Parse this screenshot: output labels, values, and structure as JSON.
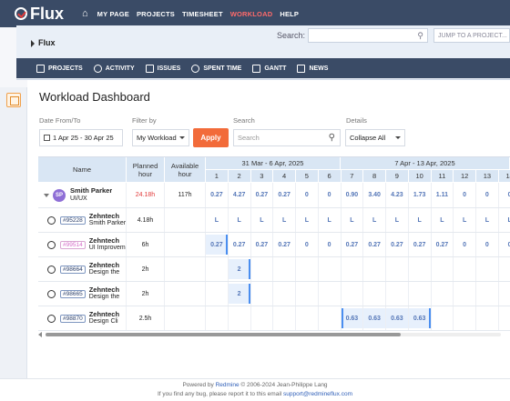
{
  "app": {
    "name": "Flux"
  },
  "topnav": [
    "MY PAGE",
    "PROJECTS",
    "TIMESHEET",
    "WORKLOAD",
    "HELP"
  ],
  "header": {
    "project": "Flux",
    "search_label": "Search:",
    "search_value": "",
    "jump": "JUMP TO A PROJECT..."
  },
  "menu": [
    "PROJECTS",
    "ACTIVITY",
    "ISSUES",
    "SPENT TIME",
    "GANTT",
    "NEWS"
  ],
  "page": {
    "title": "Workload Dashboard"
  },
  "filters": {
    "date_label": "Date From/To",
    "date_value": "1 Apr 25 - 30 Apr 25",
    "filter_label": "Filter by",
    "filter_value": "My Workload",
    "apply": "Apply",
    "search_label": "Search",
    "search_placeholder": "Search",
    "details_label": "Details",
    "details_value": "Collapse All"
  },
  "grid": {
    "col_name": "Name",
    "col_planned": "Planned hour",
    "col_available": "Available hour",
    "week1": "31 Mar - 6 Apr, 2025",
    "week2": "7 Apr - 13 Apr, 2025",
    "days": [
      "1",
      "2",
      "3",
      "4",
      "5",
      "6",
      "7",
      "8",
      "9",
      "10",
      "11",
      "12",
      "13",
      "14"
    ],
    "user": {
      "initials": "SP",
      "name": "Smith Parker",
      "role": "UI/UX",
      "planned": "24.18h",
      "available": "117h",
      "days": [
        "0.27",
        "4.27",
        "0.27",
        "0.27",
        "0",
        "0",
        "0.90",
        "3.40",
        "4.23",
        "1.73",
        "1.11",
        "0",
        "0",
        "0"
      ]
    },
    "tasks": [
      {
        "id": "#95228",
        "org": "Zehntech",
        "title": "Smith Parker",
        "planned": "4.18h",
        "pink": false,
        "days": [
          "L",
          "L",
          "L",
          "L",
          "L",
          "L",
          "L",
          "L",
          "L",
          "L",
          "L",
          "L",
          "L",
          "L"
        ],
        "hl": []
      },
      {
        "id": "#99514",
        "org": "Zehntech",
        "title": "UI Improvement",
        "planned": "6h",
        "pink": true,
        "days": [
          "0.27",
          "0.27",
          "0.27",
          "0.27",
          "0",
          "0",
          "0.27",
          "0.27",
          "0.27",
          "0.27",
          "0.27",
          "0",
          "0",
          "0"
        ],
        "hl": [
          0
        ]
      },
      {
        "id": "#98664",
        "org": "Zehntech",
        "title": "Design the",
        "planned": "2h",
        "pink": false,
        "days": [
          "",
          "2",
          "",
          "",
          "",
          "",
          "",
          "",
          "",
          "",
          "",
          "",
          "",
          ""
        ],
        "hl": [
          1
        ]
      },
      {
        "id": "#98665",
        "org": "Zehntech",
        "title": "Design the",
        "planned": "2h",
        "pink": false,
        "days": [
          "",
          "2",
          "",
          "",
          "",
          "",
          "",
          "",
          "",
          "",
          "",
          "",
          "",
          ""
        ],
        "hl": [
          1
        ]
      },
      {
        "id": "#98870",
        "org": "Zehntech",
        "title": "Design Cli",
        "planned": "2.5h",
        "pink": false,
        "days": [
          "",
          "",
          "",
          "",
          "",
          "",
          "0.63",
          "0.63",
          "0.63",
          "0.63",
          "",
          "",
          "",
          ""
        ],
        "hl": [
          6,
          7,
          8,
          9
        ]
      }
    ]
  },
  "footer": {
    "l1_pre": "Powered by",
    "l1_link": "Redmine",
    "l1_post": "© 2006-2024 Jean-Philippe Lang",
    "l2_pre": "If you find any bug, please report it to this email",
    "l2_link": "support@redmineflux.com"
  }
}
